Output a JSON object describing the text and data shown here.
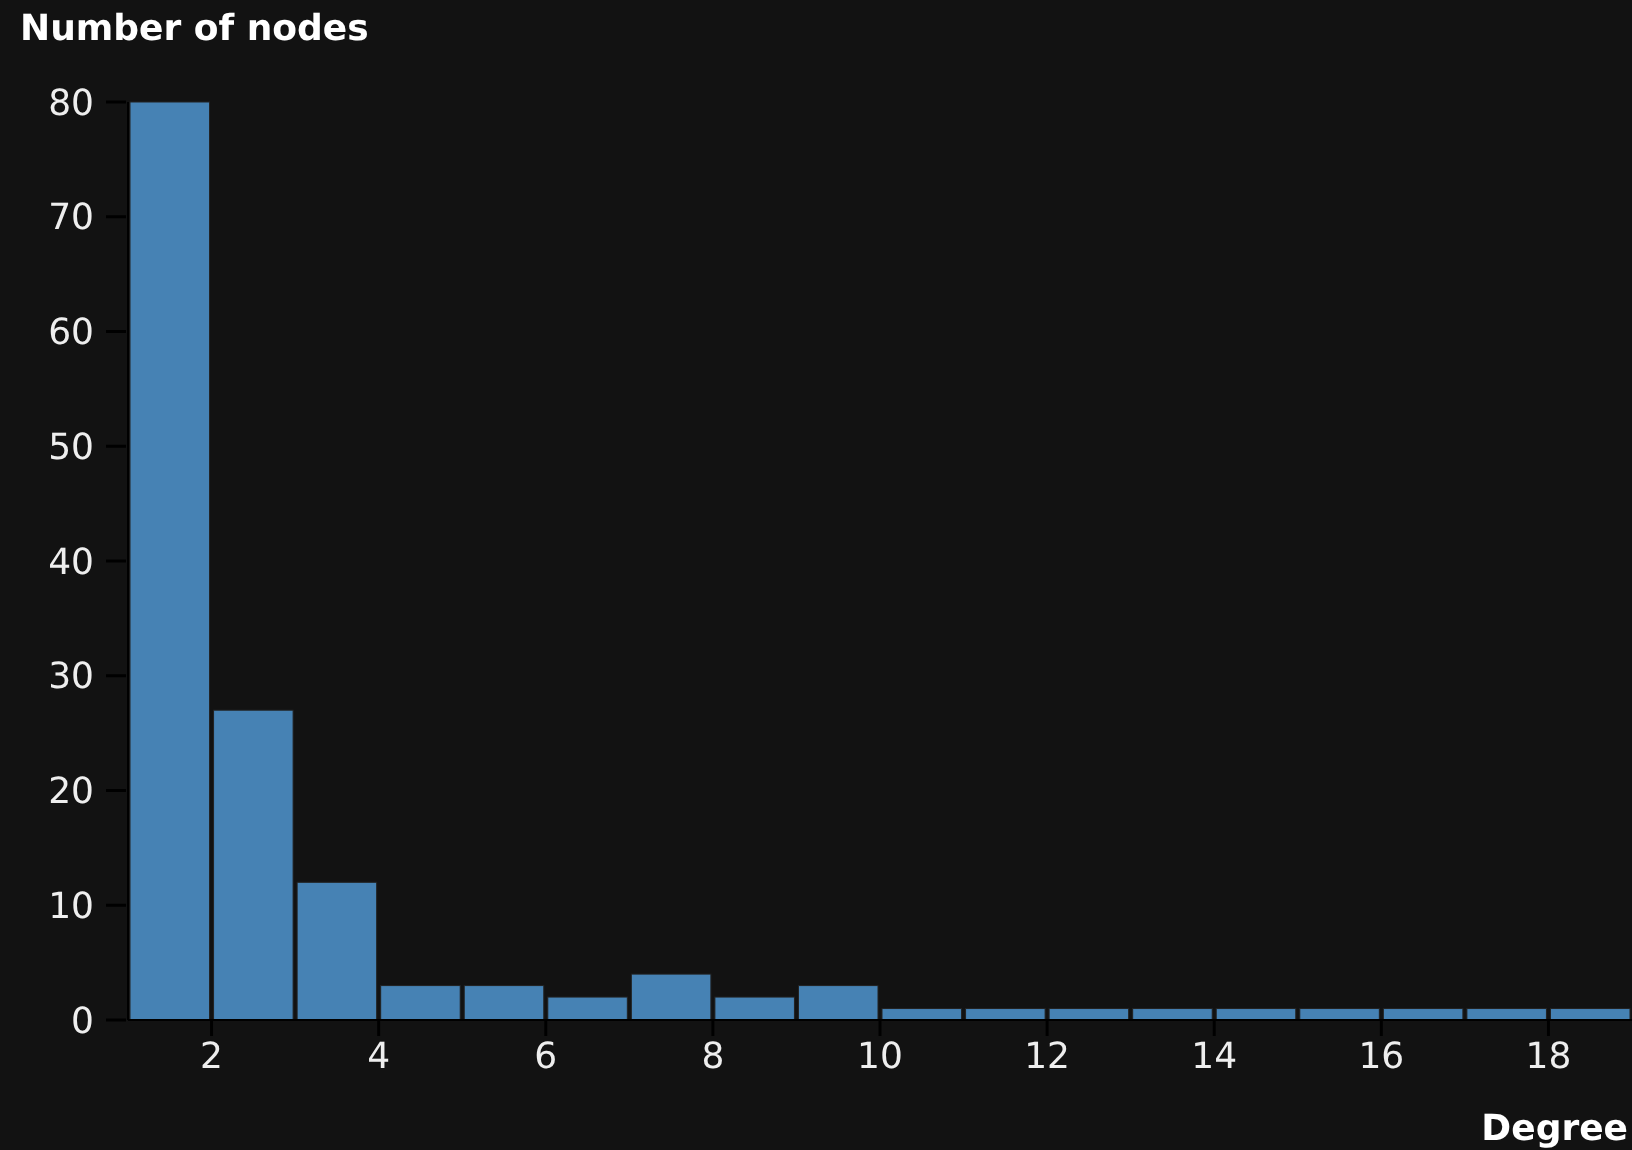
{
  "chart_data": {
    "type": "histogram",
    "xlabel": "Degree",
    "ylabel": "Number of nodes",
    "bins": [
      1,
      2,
      3,
      4,
      5,
      6,
      7,
      8,
      9,
      10,
      11,
      12,
      13,
      14,
      15,
      16,
      17,
      18,
      19
    ],
    "values": [
      80,
      27,
      12,
      3,
      3,
      2,
      4,
      2,
      3,
      1,
      1,
      1,
      1,
      1,
      1,
      1,
      1,
      1
    ],
    "color": "#4682b4",
    "xlim": [
      1,
      19
    ],
    "xticks": [
      2,
      4,
      6,
      8,
      10,
      12,
      14,
      16,
      18
    ],
    "ylim": [
      0,
      80
    ],
    "yticks": [
      0,
      10,
      20,
      30,
      40,
      50,
      60,
      70,
      80
    ],
    "grid": false
  }
}
